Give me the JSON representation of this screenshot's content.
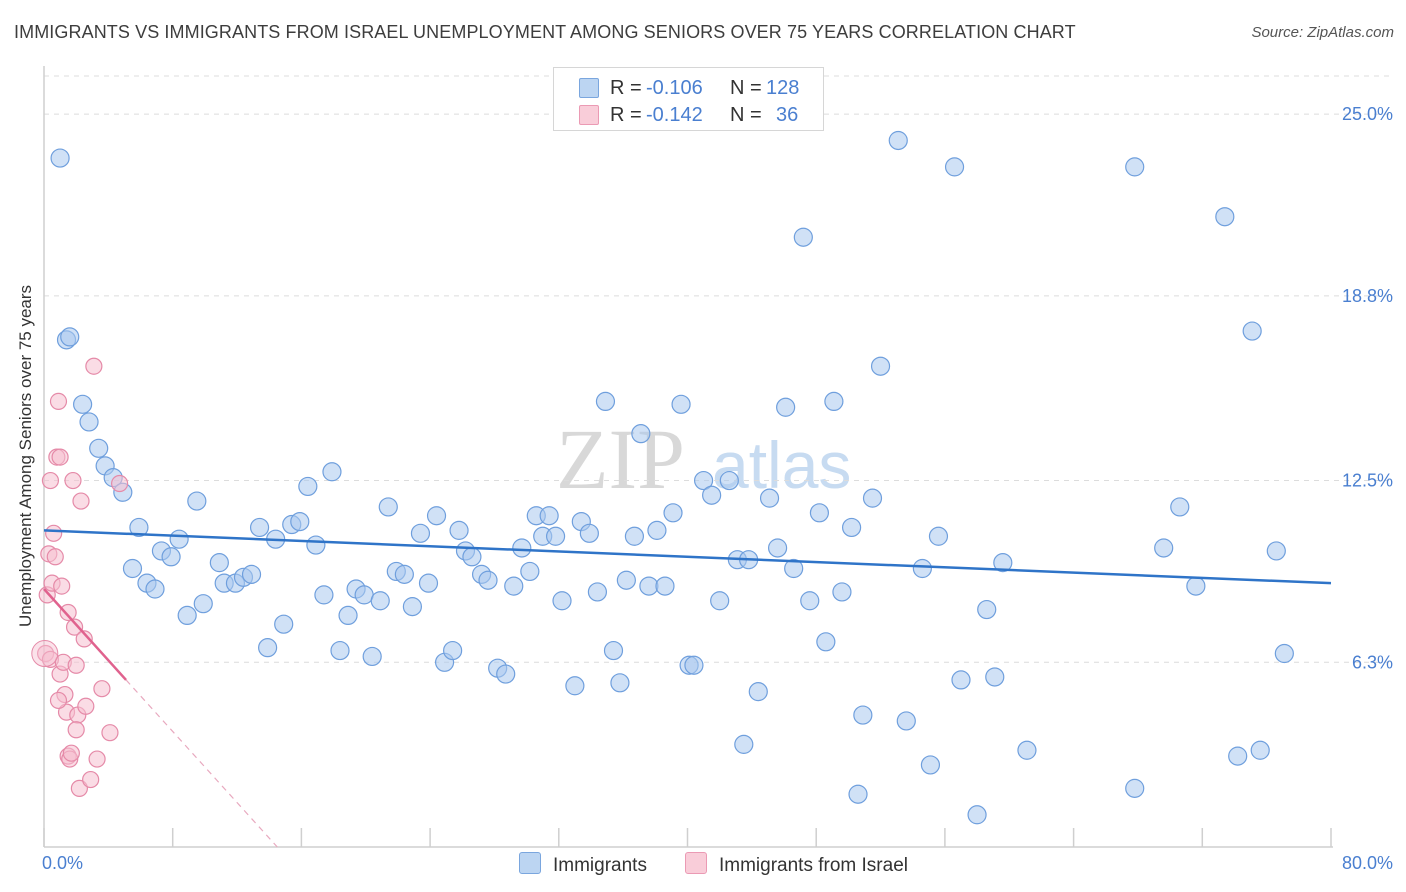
{
  "title": "IMMIGRANTS VS IMMIGRANTS FROM ISRAEL UNEMPLOYMENT AMONG SENIORS OVER 75 YEARS CORRELATION CHART",
  "source": "Source: ZipAtlas.com",
  "watermark": {
    "zip": "ZIP",
    "atlas": "atlas"
  },
  "legend_top": {
    "rows": [
      {
        "r_label": "R =",
        "r_value": "-0.106",
        "n_label": "N =",
        "n_value": "128"
      },
      {
        "r_label": "R =",
        "r_value": "-0.142",
        "n_label": "N =",
        "n_value": "36"
      }
    ]
  },
  "legend_bottom": [
    "Immigrants",
    "Immigrants from Israel"
  ],
  "colors": {
    "blue_fill": "#a9c8ee",
    "blue_stroke": "#6f9fdd",
    "blue_line": "#2f74c8",
    "pink_fill": "#f6bfd0",
    "pink_stroke": "#e58aa8",
    "pink_line": "#e0628e",
    "tick_text": "#4a7fd0",
    "grid": "#dcdcdc"
  },
  "chart_data": {
    "type": "scatter",
    "xlabel": "",
    "ylabel": "Unemployment Among Seniors over 75 years",
    "xlim": [
      0,
      80
    ],
    "ylim": [
      0,
      26.3
    ],
    "x_tick_labels": [
      {
        "value": 0,
        "label": "0.0%"
      },
      {
        "value": 80,
        "label": "80.0%"
      }
    ],
    "y_tick_labels": [
      {
        "value": 6.3,
        "label": "6.3%"
      },
      {
        "value": 12.5,
        "label": "12.5%"
      },
      {
        "value": 18.8,
        "label": "18.8%"
      },
      {
        "value": 25.0,
        "label": "25.0%"
      }
    ],
    "series": [
      {
        "name": "Immigrants",
        "color": "blue",
        "trend": {
          "x": [
            0,
            80
          ],
          "y": [
            10.8,
            9.0
          ]
        },
        "points": [
          [
            1.0,
            23.5
          ],
          [
            1.4,
            17.3
          ],
          [
            1.6,
            17.4
          ],
          [
            2.4,
            15.1
          ],
          [
            2.8,
            14.5
          ],
          [
            3.4,
            13.6
          ],
          [
            3.8,
            13.0
          ],
          [
            4.3,
            12.6
          ],
          [
            4.9,
            12.1
          ],
          [
            5.5,
            9.5
          ],
          [
            5.9,
            10.9
          ],
          [
            6.4,
            9.0
          ],
          [
            6.9,
            8.8
          ],
          [
            7.3,
            10.1
          ],
          [
            7.9,
            9.9
          ],
          [
            8.4,
            10.5
          ],
          [
            8.9,
            7.9
          ],
          [
            9.5,
            11.8
          ],
          [
            9.9,
            8.3
          ],
          [
            10.9,
            9.7
          ],
          [
            11.2,
            9.0
          ],
          [
            11.9,
            9.0
          ],
          [
            12.4,
            9.2
          ],
          [
            12.9,
            9.3
          ],
          [
            13.4,
            10.9
          ],
          [
            13.9,
            6.8
          ],
          [
            14.4,
            10.5
          ],
          [
            14.9,
            7.6
          ],
          [
            15.4,
            11.0
          ],
          [
            15.9,
            11.1
          ],
          [
            16.4,
            12.3
          ],
          [
            16.9,
            10.3
          ],
          [
            17.4,
            8.6
          ],
          [
            17.9,
            12.8
          ],
          [
            18.4,
            6.7
          ],
          [
            18.9,
            7.9
          ],
          [
            19.4,
            8.8
          ],
          [
            19.9,
            8.6
          ],
          [
            20.4,
            6.5
          ],
          [
            20.9,
            8.4
          ],
          [
            21.4,
            11.6
          ],
          [
            21.9,
            9.4
          ],
          [
            22.4,
            9.3
          ],
          [
            22.9,
            8.2
          ],
          [
            23.4,
            10.7
          ],
          [
            23.9,
            9.0
          ],
          [
            24.4,
            11.3
          ],
          [
            24.9,
            6.3
          ],
          [
            25.4,
            6.7
          ],
          [
            25.8,
            10.8
          ],
          [
            26.2,
            10.1
          ],
          [
            26.6,
            9.9
          ],
          [
            27.2,
            9.3
          ],
          [
            27.6,
            9.1
          ],
          [
            28.2,
            6.1
          ],
          [
            28.7,
            5.9
          ],
          [
            29.2,
            8.9
          ],
          [
            29.7,
            10.2
          ],
          [
            30.2,
            9.4
          ],
          [
            30.6,
            11.3
          ],
          [
            31.0,
            10.6
          ],
          [
            31.4,
            11.3
          ],
          [
            31.8,
            10.6
          ],
          [
            32.2,
            8.4
          ],
          [
            33.0,
            5.5
          ],
          [
            33.4,
            11.1
          ],
          [
            33.9,
            10.7
          ],
          [
            34.4,
            8.7
          ],
          [
            34.9,
            15.2
          ],
          [
            35.4,
            6.7
          ],
          [
            35.8,
            5.6
          ],
          [
            36.2,
            9.1
          ],
          [
            36.7,
            10.6
          ],
          [
            37.1,
            14.1
          ],
          [
            37.6,
            8.9
          ],
          [
            38.1,
            10.8
          ],
          [
            38.6,
            8.9
          ],
          [
            39.1,
            11.4
          ],
          [
            39.6,
            15.1
          ],
          [
            40.1,
            6.2
          ],
          [
            40.4,
            6.2
          ],
          [
            41.0,
            12.5
          ],
          [
            41.5,
            12.0
          ],
          [
            42.0,
            8.4
          ],
          [
            42.6,
            12.5
          ],
          [
            43.1,
            9.8
          ],
          [
            43.5,
            3.5
          ],
          [
            43.8,
            9.8
          ],
          [
            44.4,
            5.3
          ],
          [
            45.1,
            11.9
          ],
          [
            45.6,
            10.2
          ],
          [
            46.1,
            15.0
          ],
          [
            46.6,
            9.5
          ],
          [
            47.2,
            20.8
          ],
          [
            47.6,
            8.4
          ],
          [
            48.2,
            11.4
          ],
          [
            48.6,
            7.0
          ],
          [
            49.1,
            15.2
          ],
          [
            49.6,
            8.7
          ],
          [
            50.2,
            10.9
          ],
          [
            50.6,
            1.8
          ],
          [
            50.9,
            4.5
          ],
          [
            51.5,
            11.9
          ],
          [
            52.0,
            16.4
          ],
          [
            53.1,
            24.1
          ],
          [
            53.6,
            4.3
          ],
          [
            54.6,
            9.5
          ],
          [
            55.1,
            2.8
          ],
          [
            55.6,
            10.6
          ],
          [
            56.6,
            23.2
          ],
          [
            57.0,
            5.7
          ],
          [
            58.0,
            1.1
          ],
          [
            58.6,
            8.1
          ],
          [
            59.1,
            5.8
          ],
          [
            59.6,
            9.7
          ],
          [
            61.1,
            3.3
          ],
          [
            67.8,
            23.2
          ],
          [
            67.8,
            2.0
          ],
          [
            69.6,
            10.2
          ],
          [
            70.6,
            11.6
          ],
          [
            71.6,
            8.9
          ],
          [
            73.4,
            21.5
          ],
          [
            74.2,
            3.1
          ],
          [
            75.1,
            17.6
          ],
          [
            75.6,
            3.3
          ],
          [
            76.6,
            10.1
          ],
          [
            77.1,
            6.6
          ]
        ]
      },
      {
        "name": "Immigrants from Israel",
        "color": "pink",
        "trend": {
          "x": [
            0,
            5.1
          ],
          "y": [
            8.8,
            5.7
          ]
        },
        "trend_dashed": {
          "x": [
            5.1,
            14.5
          ],
          "y": [
            5.7,
            0.0
          ]
        },
        "points": [
          [
            0.1,
            6.6
          ],
          [
            0.2,
            8.6
          ],
          [
            0.3,
            10.0
          ],
          [
            0.4,
            6.4
          ],
          [
            0.4,
            12.5
          ],
          [
            0.5,
            9.0
          ],
          [
            0.6,
            10.7
          ],
          [
            0.7,
            9.9
          ],
          [
            0.8,
            13.3
          ],
          [
            0.9,
            15.2
          ],
          [
            1.0,
            13.3
          ],
          [
            1.0,
            5.9
          ],
          [
            1.1,
            8.9
          ],
          [
            1.2,
            6.3
          ],
          [
            1.3,
            5.2
          ],
          [
            1.4,
            4.6
          ],
          [
            1.5,
            3.1
          ],
          [
            1.6,
            3.0
          ],
          [
            1.7,
            3.2
          ],
          [
            1.8,
            12.5
          ],
          [
            1.9,
            7.5
          ],
          [
            2.0,
            6.2
          ],
          [
            2.1,
            4.5
          ],
          [
            2.2,
            2.0
          ],
          [
            2.3,
            11.8
          ],
          [
            2.5,
            7.1
          ],
          [
            2.6,
            4.8
          ],
          [
            2.9,
            2.3
          ],
          [
            3.1,
            16.4
          ],
          [
            3.3,
            3.0
          ],
          [
            3.6,
            5.4
          ],
          [
            4.1,
            3.9
          ],
          [
            4.7,
            12.4
          ],
          [
            0.9,
            5.0
          ],
          [
            1.5,
            8.0
          ],
          [
            2.0,
            4.0
          ]
        ]
      }
    ],
    "grid": true,
    "legend_placement": "top-center and bottom"
  }
}
